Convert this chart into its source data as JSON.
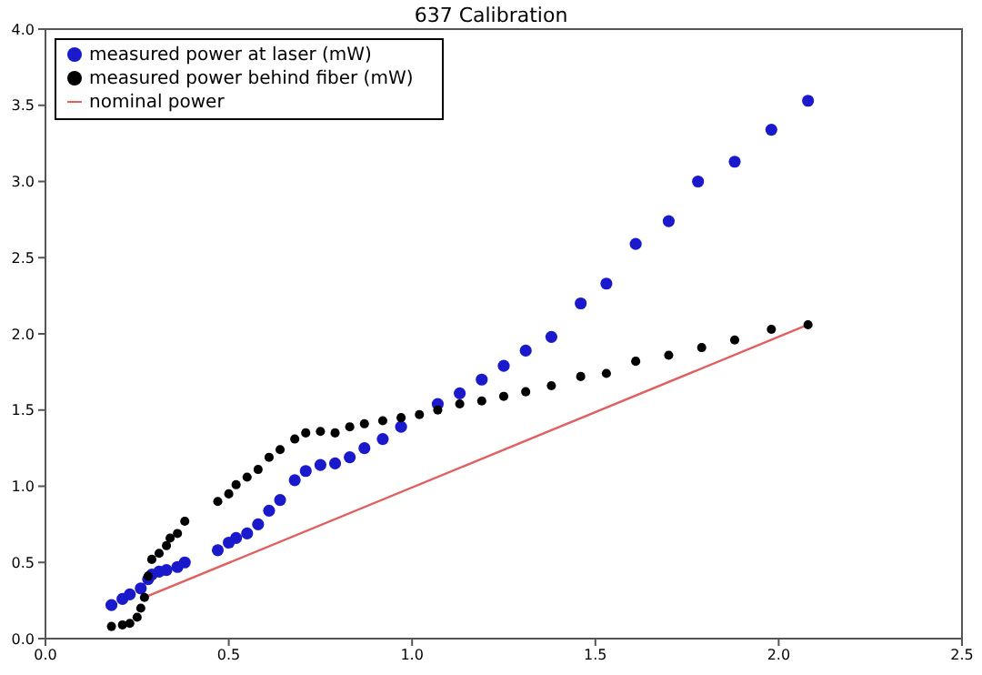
{
  "chart_data": {
    "type": "scatter",
    "title": "637 Calibration",
    "xlim": [
      0,
      2.5
    ],
    "xticks": [
      {
        "value": 0,
        "label": "0.0"
      },
      {
        "value": 0.5,
        "label": "0.5"
      },
      {
        "value": 1,
        "label": "1.0"
      },
      {
        "value": 1.5,
        "label": "1.5"
      },
      {
        "value": 2,
        "label": "2.0"
      },
      {
        "value": 2.5,
        "label": "2.5"
      }
    ],
    "ylim": [
      0,
      4
    ],
    "yticks": [
      {
        "value": 0,
        "label": "0.0"
      },
      {
        "value": 0.5,
        "label": "0.5"
      },
      {
        "value": 1,
        "label": "1.0"
      },
      {
        "value": 1.5,
        "label": "1.5"
      },
      {
        "value": 2,
        "label": "2.0"
      },
      {
        "value": 2.5,
        "label": "2.5"
      },
      {
        "value": 3,
        "label": "3.0"
      },
      {
        "value": 3.5,
        "label": "3.5"
      },
      {
        "value": 4,
        "label": "4.0"
      }
    ],
    "grid": false,
    "legend": "top left",
    "marker": "circle",
    "series": [
      {
        "name": "measured power at laser (mW)",
        "color": "#1a1acc",
        "x": [
          0.18,
          0.21,
          0.23,
          0.26,
          0.28,
          0.29,
          0.31,
          0.33,
          0.36,
          0.38,
          0.47,
          0.5,
          0.52,
          0.55,
          0.58,
          0.61,
          0.64,
          0.68,
          0.71,
          0.75,
          0.79,
          0.83,
          0.87,
          0.92,
          0.97,
          1.07,
          1.13,
          1.19,
          1.25,
          1.31,
          1.38,
          1.46,
          1.53,
          1.61,
          1.7,
          1.78,
          1.88,
          1.98,
          2.08
        ],
        "values": [
          0.22,
          0.26,
          0.29,
          0.33,
          0.39,
          0.42,
          0.44,
          0.45,
          0.47,
          0.5,
          0.58,
          0.63,
          0.66,
          0.69,
          0.75,
          0.84,
          0.91,
          1.04,
          1.1,
          1.14,
          1.15,
          1.19,
          1.25,
          1.31,
          1.39,
          1.54,
          1.61,
          1.7,
          1.79,
          1.89,
          1.98,
          2.2,
          2.33,
          2.59,
          2.74,
          3.0,
          3.13,
          3.34,
          3.53
        ]
      },
      {
        "name": "measured power behind fiber (mW)",
        "color": "#000000",
        "x": [
          0.18,
          0.21,
          0.23,
          0.25,
          0.26,
          0.27,
          0.28,
          0.29,
          0.31,
          0.33,
          0.34,
          0.36,
          0.38,
          0.47,
          0.5,
          0.52,
          0.55,
          0.58,
          0.61,
          0.64,
          0.68,
          0.71,
          0.75,
          0.79,
          0.83,
          0.87,
          0.92,
          0.97,
          1.02,
          1.07,
          1.13,
          1.19,
          1.25,
          1.31,
          1.38,
          1.46,
          1.53,
          1.61,
          1.7,
          1.79,
          1.88,
          1.98,
          2.08
        ],
        "values": [
          0.08,
          0.09,
          0.1,
          0.14,
          0.2,
          0.27,
          0.41,
          0.52,
          0.56,
          0.61,
          0.66,
          0.69,
          0.77,
          0.9,
          0.95,
          1.01,
          1.06,
          1.11,
          1.19,
          1.24,
          1.31,
          1.35,
          1.36,
          1.35,
          1.39,
          1.41,
          1.43,
          1.45,
          1.47,
          1.5,
          1.54,
          1.56,
          1.59,
          1.62,
          1.66,
          1.72,
          1.74,
          1.82,
          1.86,
          1.91,
          1.96,
          2.03,
          2.06
        ]
      },
      {
        "name": "nominal power",
        "type": "line",
        "color": "#e06060",
        "marker": "none",
        "x": [
          0.26,
          2.08
        ],
        "values": [
          0.26,
          2.06
        ]
      }
    ]
  }
}
